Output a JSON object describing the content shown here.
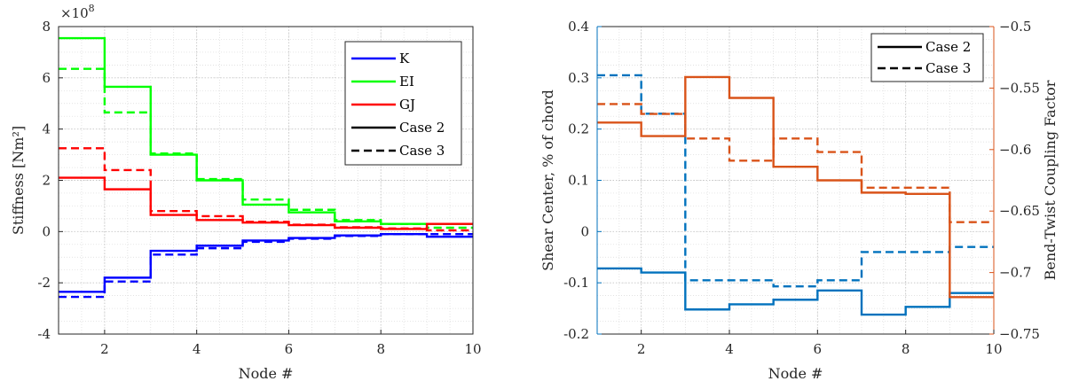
{
  "chart_data": [
    {
      "type": "line",
      "style": "stairs",
      "xlabel": "Node #",
      "ylabel": "Stiffness [Nm²]",
      "y_exponent_base": "×10",
      "y_exponent_power": "8",
      "xlim": [
        1,
        10
      ],
      "ylim": [
        -4,
        8
      ],
      "xticks": [
        2,
        4,
        6,
        8,
        10
      ],
      "yticks": [
        -4,
        -2,
        0,
        2,
        4,
        6,
        8
      ],
      "grid": true,
      "minor_grid": true,
      "legend_position": "top-right",
      "x": [
        1,
        2,
        3,
        4,
        5,
        6,
        7,
        8,
        9,
        10
      ],
      "series": [
        {
          "name": "K",
          "case": "Case 2",
          "color": "#0000ff",
          "dash": "solid",
          "values": [
            -2.35,
            -1.8,
            -0.75,
            -0.55,
            -0.35,
            -0.25,
            -0.15,
            -0.1,
            -0.2,
            -0.2
          ]
        },
        {
          "name": "K",
          "case": "Case 3",
          "color": "#0000ff",
          "dash": "dashed",
          "values": [
            -2.55,
            -1.95,
            -0.9,
            -0.65,
            -0.4,
            -0.28,
            -0.17,
            -0.1,
            -0.1,
            -0.1
          ]
        },
        {
          "name": "EI",
          "case": "Case 2",
          "color": "#00ff00",
          "dash": "solid",
          "values": [
            7.55,
            5.65,
            3.0,
            2.0,
            1.05,
            0.75,
            0.4,
            0.3,
            0.3,
            0.3
          ]
        },
        {
          "name": "EI",
          "case": "Case 3",
          "color": "#00ff00",
          "dash": "dashed",
          "values": [
            6.35,
            4.65,
            3.05,
            2.05,
            1.25,
            0.85,
            0.45,
            0.3,
            0.15,
            0.15
          ]
        },
        {
          "name": "GJ",
          "case": "Case 2",
          "color": "#ff0000",
          "dash": "solid",
          "values": [
            2.1,
            1.65,
            0.65,
            0.45,
            0.35,
            0.25,
            0.15,
            0.1,
            0.3,
            0.3
          ]
        },
        {
          "name": "GJ",
          "case": "Case 3",
          "color": "#ff0000",
          "dash": "dashed",
          "values": [
            3.25,
            2.4,
            0.8,
            0.6,
            0.38,
            0.27,
            0.17,
            0.12,
            0.05,
            0.05
          ]
        }
      ],
      "legend": [
        {
          "label": "K",
          "color": "#0000ff",
          "dash": "solid"
        },
        {
          "label": "EI",
          "color": "#00ff00",
          "dash": "solid"
        },
        {
          "label": "GJ",
          "color": "#ff0000",
          "dash": "solid"
        },
        {
          "label": "Case 2",
          "color": "#000000",
          "dash": "solid"
        },
        {
          "label": "Case 3",
          "color": "#000000",
          "dash": "dashed"
        }
      ]
    },
    {
      "type": "line",
      "style": "stairs",
      "xlabel": "Node #",
      "ylabel": "Shear Center, % of chord",
      "ylabel_right": "Bend-Twist Coupling Factor",
      "xlim": [
        1,
        10
      ],
      "ylim": [
        -0.2,
        0.4
      ],
      "ylim_right": [
        -0.75,
        -0.5
      ],
      "xticks": [
        2,
        4,
        6,
        8,
        10
      ],
      "yticks": [
        "-0.2",
        "-0.1",
        "0",
        "0.1",
        "0.2",
        "0.3",
        "0.4"
      ],
      "yticks_right": [
        "−0.75",
        "−0.7",
        "−0.65",
        "−0.6",
        "−0.55",
        "−0.5"
      ],
      "left_axis_color": "#0072bd",
      "right_axis_color": "#d95319",
      "grid": true,
      "minor_grid": true,
      "legend_position": "top-right",
      "x": [
        1,
        2,
        3,
        4,
        5,
        6,
        7,
        8,
        9,
        10
      ],
      "series": [
        {
          "name": "Shear Center",
          "case": "Case 2",
          "axis": "left",
          "color": "#0072bd",
          "dash": "solid",
          "values": [
            -0.072,
            -0.08,
            -0.152,
            -0.142,
            -0.133,
            -0.115,
            -0.162,
            -0.147,
            -0.12,
            -0.12
          ]
        },
        {
          "name": "Shear Center",
          "case": "Case 3",
          "axis": "left",
          "color": "#0072bd",
          "dash": "dashed",
          "values": [
            0.305,
            0.23,
            -0.095,
            -0.095,
            -0.107,
            -0.095,
            -0.04,
            -0.04,
            -0.03,
            -0.03
          ]
        },
        {
          "name": "Bend-Twist Coupling Factor",
          "case": "Case 2",
          "axis": "right",
          "color": "#d95319",
          "dash": "solid",
          "values": [
            -0.578,
            -0.589,
            -0.541,
            -0.558,
            -0.614,
            -0.625,
            -0.635,
            -0.636,
            -0.72,
            -0.72
          ]
        },
        {
          "name": "Bend-Twist Coupling Factor",
          "case": "Case 3",
          "axis": "right",
          "color": "#d95319",
          "dash": "dashed",
          "values": [
            -0.563,
            -0.571,
            -0.591,
            -0.609,
            -0.591,
            -0.602,
            -0.631,
            -0.631,
            -0.659,
            -0.659
          ]
        }
      ],
      "legend": [
        {
          "label": "Case 2",
          "color": "#000000",
          "dash": "solid"
        },
        {
          "label": "Case 3",
          "color": "#000000",
          "dash": "dashed"
        }
      ]
    }
  ]
}
